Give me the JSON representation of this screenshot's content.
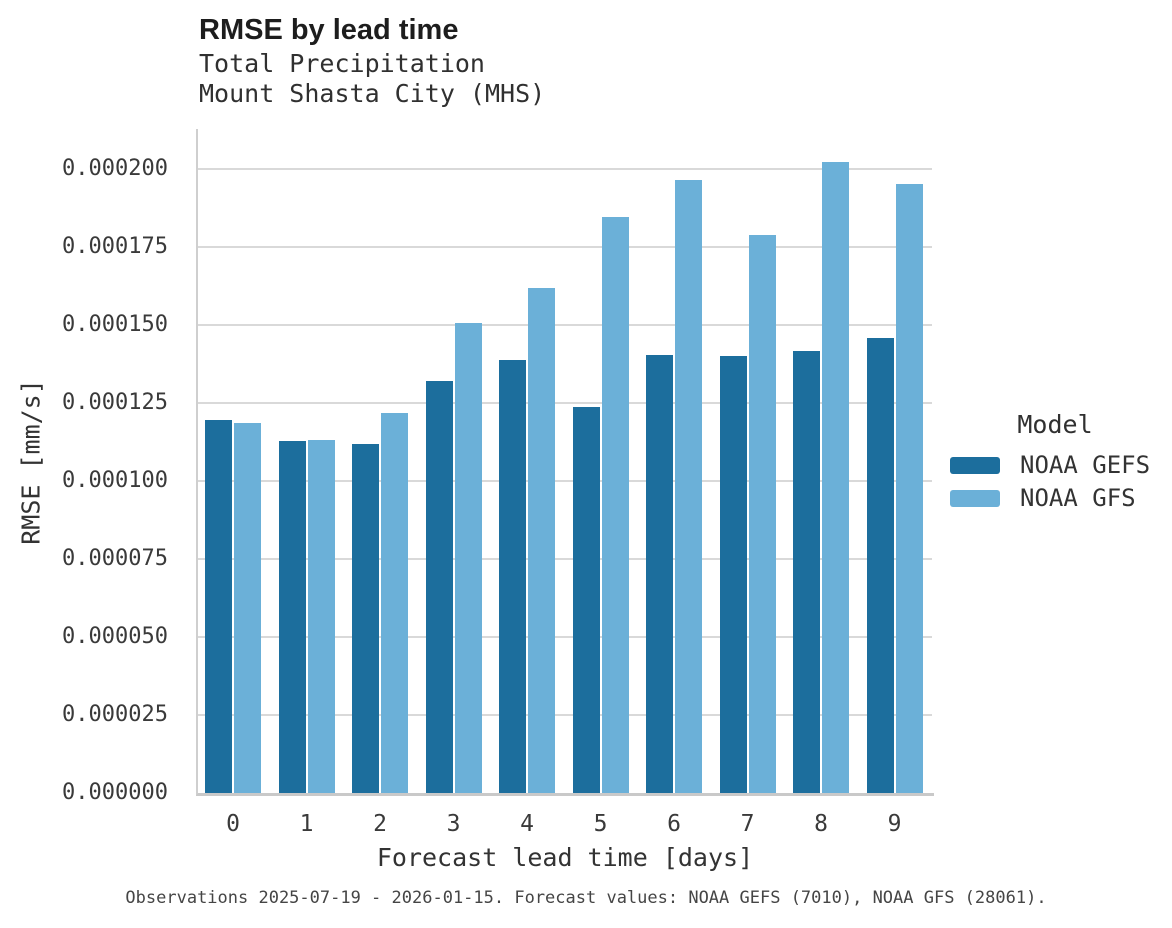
{
  "header": {
    "title": "RMSE by lead time",
    "subtitle_line1": "Total Precipitation",
    "subtitle_line2": "Mount Shasta City (MHS)"
  },
  "legend": {
    "title": "Model",
    "entries": [
      {
        "label": "NOAA GEFS",
        "color": "#1c6e9d"
      },
      {
        "label": "NOAA GFS",
        "color": "#6bb0d8"
      }
    ]
  },
  "caption": {
    "text": "Observations 2025-07-19 - 2026-01-15. Forecast values: NOAA GEFS (7010), NOAA GFS (28061)."
  },
  "colors": {
    "gefs_bar": "#1c6e9d",
    "gfs_bar": "#6bb0d8",
    "gridline": "#d9d9d9",
    "axis_spine": "#c9c9c9",
    "background": "#ffffff"
  },
  "chart_data": {
    "type": "bar",
    "title": "RMSE by lead time",
    "subtitle": "Total Precipitation, Mount Shasta City (MHS)",
    "xlabel": "Forecast lead time [days]",
    "ylabel": "RMSE [mm/s]",
    "categories": [
      "0",
      "1",
      "2",
      "3",
      "4",
      "5",
      "6",
      "7",
      "8",
      "9"
    ],
    "series": [
      {
        "name": "NOAA GEFS",
        "color": "#1c6e9d",
        "values": [
          0.0001195,
          0.0001128,
          0.0001118,
          0.000132,
          0.0001388,
          0.0001238,
          0.0001404,
          0.0001401,
          0.0001417,
          0.0001458
        ]
      },
      {
        "name": "NOAA GFS",
        "color": "#6bb0d8",
        "values": [
          0.0001186,
          0.000113,
          0.0001218,
          0.0001505,
          0.0001619,
          0.0001846,
          0.0001965,
          0.0001789,
          0.0002023,
          0.0001952
        ]
      }
    ],
    "ylim": [
      0,
      0.000213
    ],
    "yticks": [
      0.0,
      2.5e-05,
      5e-05,
      7.5e-05,
      0.0001,
      0.000125,
      0.00015,
      0.000175,
      0.0002
    ],
    "ytick_labels": [
      "0.000000",
      "0.000025",
      "0.000050",
      "0.000075",
      "0.000100",
      "0.000125",
      "0.000150",
      "0.000175",
      "0.000200"
    ],
    "grid": "horizontal",
    "legend_title": "Model",
    "legend_position": "right"
  }
}
